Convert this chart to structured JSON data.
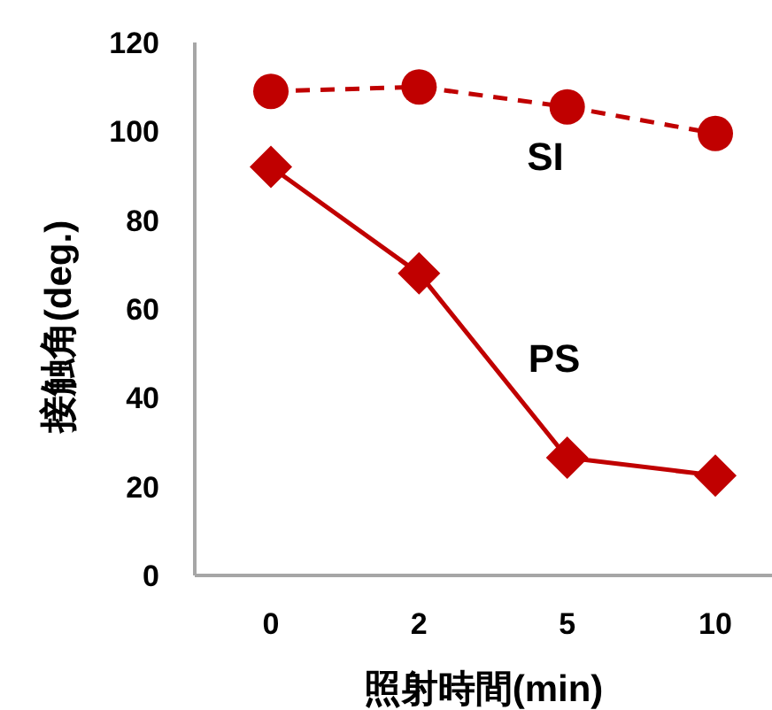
{
  "chart_data": {
    "type": "line",
    "xlabel": "照射時間(min)",
    "ylabel": "接触角(deg.)",
    "categories": [
      "0",
      "2",
      "5",
      "10"
    ],
    "series": [
      {
        "name": "SI",
        "color": "#c00000",
        "values": [
          109,
          110,
          105.5,
          99.5
        ],
        "marker": "circle",
        "line_style": "dashed"
      },
      {
        "name": "PS",
        "color": "#c00000",
        "values": [
          92,
          68,
          26.5,
          22.5
        ],
        "marker": "diamond",
        "line_style": "solid"
      }
    ],
    "ylim": [
      0,
      120
    ],
    "yticks": [
      0,
      20,
      40,
      60,
      80,
      100,
      120
    ],
    "grid": false,
    "legend": false
  }
}
